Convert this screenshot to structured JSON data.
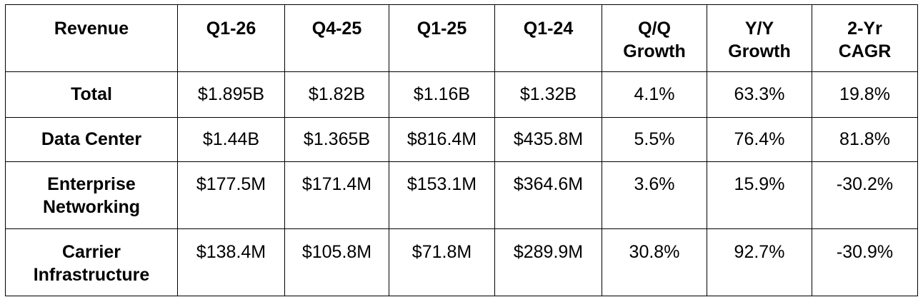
{
  "table": {
    "headers": [
      [
        "Revenue"
      ],
      [
        "Q1-26"
      ],
      [
        "Q4-25"
      ],
      [
        "Q1-25"
      ],
      [
        "Q1-24"
      ],
      [
        "Q/Q",
        "Growth"
      ],
      [
        "Y/Y",
        "Growth"
      ],
      [
        "2-Yr",
        "CAGR"
      ]
    ],
    "rows": [
      {
        "label": [
          "Total"
        ],
        "cells": [
          "$1.895B",
          "$1.82B",
          "$1.16B",
          "$1.32B",
          "4.1%",
          "63.3%",
          "19.8%"
        ]
      },
      {
        "label": [
          "Data Center"
        ],
        "cells": [
          "$1.44B",
          "$1.365B",
          "$816.4M",
          "$435.8M",
          "5.5%",
          "76.4%",
          "81.8%"
        ]
      },
      {
        "label": [
          "Enterprise",
          "Networking"
        ],
        "cells": [
          "$177.5M",
          "$171.4M",
          "$153.1M",
          "$364.6M",
          "3.6%",
          "15.9%",
          "-30.2%"
        ]
      },
      {
        "label": [
          "Carrier",
          "Infrastructure"
        ],
        "cells": [
          "$138.4M",
          "$105.8M",
          "$71.8M",
          "$289.9M",
          "30.8%",
          "92.7%",
          "-30.9%"
        ]
      }
    ]
  }
}
